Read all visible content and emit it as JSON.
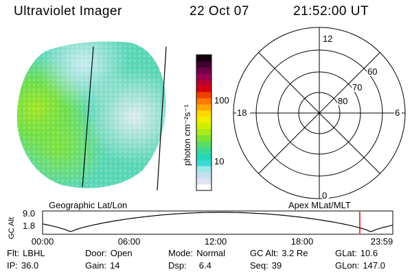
{
  "header": {
    "title": "Ultraviolet Imager",
    "date": "22 Oct 07",
    "time": "21:52:00 UT"
  },
  "colorbar": {
    "unit_label": "photon cm⁻²s⁻¹",
    "tick_100": "100",
    "tick_10": "10",
    "colors": [
      "#ffffff",
      "#dfe4ee",
      "#c6e0f2",
      "#9be6e8",
      "#3ad9d2",
      "#22d8b8",
      "#3cd898",
      "#58dc66",
      "#7ee236",
      "#a8ea1a",
      "#d0ee00",
      "#eef000",
      "#ffd800",
      "#ffa800",
      "#ff7a00",
      "#f04000",
      "#d80010",
      "#b80030",
      "#980050",
      "#70004c",
      "#400030",
      "#14000a"
    ]
  },
  "polar_grid": {
    "label_top": "12",
    "label_bottom": "0",
    "label_left": "18",
    "label_right": "6",
    "ring_60": "60",
    "ring_70": "70",
    "ring_80": "80"
  },
  "timeline": {
    "left_title": "Geographic Lat/Lon",
    "right_title": "Apex MLat/MLT",
    "y_axis_label": "GC Alt",
    "y_max": "9.0",
    "y_min": "1.8",
    "ticks": [
      "00:00",
      "06:00",
      "12:00",
      "18:00",
      "23:59"
    ],
    "marker_color": "#e00000"
  },
  "info": {
    "flt_label": "Flt:",
    "flt_value": "LBHL",
    "ip_label": "IP:",
    "ip_value": "36.0",
    "door_label": "Door:",
    "door_value": "Open",
    "gain_label": "Gain:",
    "gain_value": "14",
    "mode_label": "Mode:",
    "mode_value": "Normal",
    "dsp_label": "Dsp:",
    "dsp_value": "6.4",
    "gcalt_label": "GC Alt:",
    "gcalt_value": "3.2 Re",
    "seq_label": "Seq:",
    "seq_value": "39",
    "glat_label": "GLat:",
    "glat_value": "10.6",
    "glon_label": "GLon:",
    "glon_value": "147.0"
  }
}
